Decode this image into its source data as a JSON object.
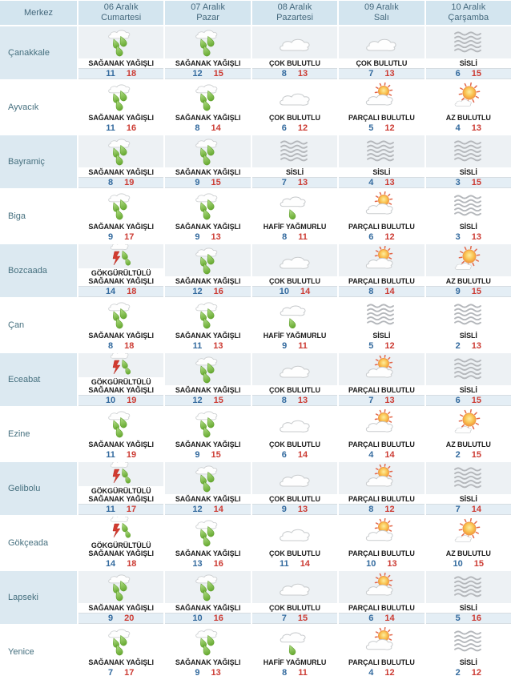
{
  "colors": {
    "header_bg": "#d3e5ef",
    "header_text": "#44687c",
    "name_text": "#46707f",
    "shaded_name_bg": "#dce9f1",
    "shaded_icon_bg": "#edf1f4",
    "shaded_temp_bg": "#e4eef5",
    "min_temp": "#336a9e",
    "max_temp": "#cc3b33",
    "rain_drop_green": "#7cc142",
    "lightning_red": "#d23b2f",
    "sun_orange": "#f5a23c",
    "fog_gray": "#b4b7bb"
  },
  "table": {
    "corner_header": "Merkez",
    "day_headers": [
      {
        "date": "06 Aralık",
        "day": "Cumartesi"
      },
      {
        "date": "07 Aralık",
        "day": "Pazar"
      },
      {
        "date": "08 Aralık",
        "day": "Pazartesi"
      },
      {
        "date": "09 Aralık",
        "day": "Salı"
      },
      {
        "date": "10 Aralık",
        "day": "Çarşamba"
      }
    ],
    "rows": [
      {
        "name": "Çanakkale",
        "cells": [
          {
            "icon": "rain-showers",
            "label": "SAĞANAK YAĞIŞLI",
            "min": 11,
            "max": 18
          },
          {
            "icon": "rain-showers",
            "label": "SAĞANAK YAĞIŞLI",
            "min": 12,
            "max": 15
          },
          {
            "icon": "cloudy",
            "label": "ÇOK BULUTLU",
            "min": 8,
            "max": 13
          },
          {
            "icon": "cloudy",
            "label": "ÇOK BULUTLU",
            "min": 7,
            "max": 13
          },
          {
            "icon": "fog",
            "label": "SİSLİ",
            "min": 6,
            "max": 15
          }
        ]
      },
      {
        "name": "Ayvacık",
        "cells": [
          {
            "icon": "rain-showers",
            "label": "SAĞANAK YAĞIŞLI",
            "min": 11,
            "max": 16
          },
          {
            "icon": "rain-showers",
            "label": "SAĞANAK YAĞIŞLI",
            "min": 8,
            "max": 14
          },
          {
            "icon": "cloudy",
            "label": "ÇOK BULUTLU",
            "min": 6,
            "max": 12
          },
          {
            "icon": "partly-cloudy",
            "label": "PARÇALI BULUTLU",
            "min": 5,
            "max": 12
          },
          {
            "icon": "mostly-sunny",
            "label": "AZ BULUTLU",
            "min": 4,
            "max": 13
          }
        ]
      },
      {
        "name": "Bayramiç",
        "cells": [
          {
            "icon": "rain-showers",
            "label": "SAĞANAK YAĞIŞLI",
            "min": 8,
            "max": 19
          },
          {
            "icon": "rain-showers",
            "label": "SAĞANAK YAĞIŞLI",
            "min": 9,
            "max": 15
          },
          {
            "icon": "fog",
            "label": "SİSLİ",
            "min": 7,
            "max": 13
          },
          {
            "icon": "fog",
            "label": "SİSLİ",
            "min": 4,
            "max": 13
          },
          {
            "icon": "fog",
            "label": "SİSLİ",
            "min": 3,
            "max": 15
          }
        ]
      },
      {
        "name": "Biga",
        "cells": [
          {
            "icon": "rain-showers",
            "label": "SAĞANAK YAĞIŞLI",
            "min": 9,
            "max": 17
          },
          {
            "icon": "rain-showers",
            "label": "SAĞANAK YAĞIŞLI",
            "min": 9,
            "max": 13
          },
          {
            "icon": "light-rain",
            "label": "HAFİF YAĞMURLU",
            "min": 8,
            "max": 11
          },
          {
            "icon": "partly-cloudy",
            "label": "PARÇALI BULUTLU",
            "min": 6,
            "max": 12
          },
          {
            "icon": "fog",
            "label": "SİSLİ",
            "min": 3,
            "max": 13
          }
        ]
      },
      {
        "name": "Bozcaada",
        "cells": [
          {
            "icon": "thunderstorm-showers",
            "label": "GÖKGÜRÜLTÜLÜ SAĞANAK YAĞIŞLI",
            "min": 14,
            "max": 18
          },
          {
            "icon": "rain-showers",
            "label": "SAĞANAK YAĞIŞLI",
            "min": 12,
            "max": 16
          },
          {
            "icon": "cloudy",
            "label": "ÇOK BULUTLU",
            "min": 10,
            "max": 14
          },
          {
            "icon": "partly-cloudy",
            "label": "PARÇALI BULUTLU",
            "min": 8,
            "max": 14
          },
          {
            "icon": "mostly-sunny",
            "label": "AZ BULUTLU",
            "min": 9,
            "max": 15
          }
        ]
      },
      {
        "name": "Çan",
        "cells": [
          {
            "icon": "rain-showers",
            "label": "SAĞANAK YAĞIŞLI",
            "min": 8,
            "max": 18
          },
          {
            "icon": "rain-showers",
            "label": "SAĞANAK YAĞIŞLI",
            "min": 11,
            "max": 13
          },
          {
            "icon": "light-rain",
            "label": "HAFİF YAĞMURLU",
            "min": 9,
            "max": 11
          },
          {
            "icon": "fog",
            "label": "SİSLİ",
            "min": 5,
            "max": 12
          },
          {
            "icon": "fog",
            "label": "SİSLİ",
            "min": 2,
            "max": 13
          }
        ]
      },
      {
        "name": "Eceabat",
        "cells": [
          {
            "icon": "thunderstorm-showers",
            "label": "GÖKGÜRÜLTÜLÜ SAĞANAK YAĞIŞLI",
            "min": 10,
            "max": 19
          },
          {
            "icon": "rain-showers",
            "label": "SAĞANAK YAĞIŞLI",
            "min": 12,
            "max": 15
          },
          {
            "icon": "cloudy",
            "label": "ÇOK BULUTLU",
            "min": 8,
            "max": 13
          },
          {
            "icon": "partly-cloudy",
            "label": "PARÇALI BULUTLU",
            "min": 7,
            "max": 13
          },
          {
            "icon": "fog",
            "label": "SİSLİ",
            "min": 6,
            "max": 15
          }
        ]
      },
      {
        "name": "Ezine",
        "cells": [
          {
            "icon": "rain-showers",
            "label": "SAĞANAK YAĞIŞLI",
            "min": 11,
            "max": 19
          },
          {
            "icon": "rain-showers",
            "label": "SAĞANAK YAĞIŞLI",
            "min": 9,
            "max": 15
          },
          {
            "icon": "cloudy",
            "label": "ÇOK BULUTLU",
            "min": 6,
            "max": 14
          },
          {
            "icon": "partly-cloudy",
            "label": "PARÇALI BULUTLU",
            "min": 4,
            "max": 14
          },
          {
            "icon": "mostly-sunny",
            "label": "AZ BULUTLU",
            "min": 2,
            "max": 15
          }
        ]
      },
      {
        "name": "Gelibolu",
        "cells": [
          {
            "icon": "thunderstorm-showers",
            "label": "GÖKGÜRÜLTÜLÜ SAĞANAK YAĞIŞLI",
            "min": 11,
            "max": 17
          },
          {
            "icon": "rain-showers",
            "label": "SAĞANAK YAĞIŞLI",
            "min": 12,
            "max": 14
          },
          {
            "icon": "cloudy",
            "label": "ÇOK BULUTLU",
            "min": 9,
            "max": 13
          },
          {
            "icon": "partly-cloudy",
            "label": "PARÇALI BULUTLU",
            "min": 8,
            "max": 12
          },
          {
            "icon": "fog",
            "label": "SİSLİ",
            "min": 7,
            "max": 14
          }
        ]
      },
      {
        "name": "Gökçeada",
        "cells": [
          {
            "icon": "thunderstorm-showers",
            "label": "GÖKGÜRÜLTÜLÜ SAĞANAK YAĞIŞLI",
            "min": 14,
            "max": 18
          },
          {
            "icon": "rain-showers",
            "label": "SAĞANAK YAĞIŞLI",
            "min": 13,
            "max": 16
          },
          {
            "icon": "cloudy",
            "label": "ÇOK BULUTLU",
            "min": 11,
            "max": 14
          },
          {
            "icon": "partly-cloudy",
            "label": "PARÇALI BULUTLU",
            "min": 10,
            "max": 13
          },
          {
            "icon": "mostly-sunny",
            "label": "AZ BULUTLU",
            "min": 10,
            "max": 15
          }
        ]
      },
      {
        "name": "Lapseki",
        "cells": [
          {
            "icon": "rain-showers",
            "label": "SAĞANAK YAĞIŞLI",
            "min": 9,
            "max": 20
          },
          {
            "icon": "rain-showers",
            "label": "SAĞANAK YAĞIŞLI",
            "min": 10,
            "max": 16
          },
          {
            "icon": "cloudy",
            "label": "ÇOK BULUTLU",
            "min": 7,
            "max": 15
          },
          {
            "icon": "partly-cloudy",
            "label": "PARÇALI BULUTLU",
            "min": 6,
            "max": 14
          },
          {
            "icon": "fog",
            "label": "SİSLİ",
            "min": 5,
            "max": 16
          }
        ]
      },
      {
        "name": "Yenice",
        "cells": [
          {
            "icon": "rain-showers",
            "label": "SAĞANAK YAĞIŞLI",
            "min": 7,
            "max": 17
          },
          {
            "icon": "rain-showers",
            "label": "SAĞANAK YAĞIŞLI",
            "min": 9,
            "max": 13
          },
          {
            "icon": "light-rain",
            "label": "HAFİF YAĞMURLU",
            "min": 8,
            "max": 11
          },
          {
            "icon": "partly-cloudy",
            "label": "PARÇALI BULUTLU",
            "min": 4,
            "max": 12
          },
          {
            "icon": "fog",
            "label": "SİSLİ",
            "min": 2,
            "max": 12
          }
        ]
      }
    ]
  }
}
